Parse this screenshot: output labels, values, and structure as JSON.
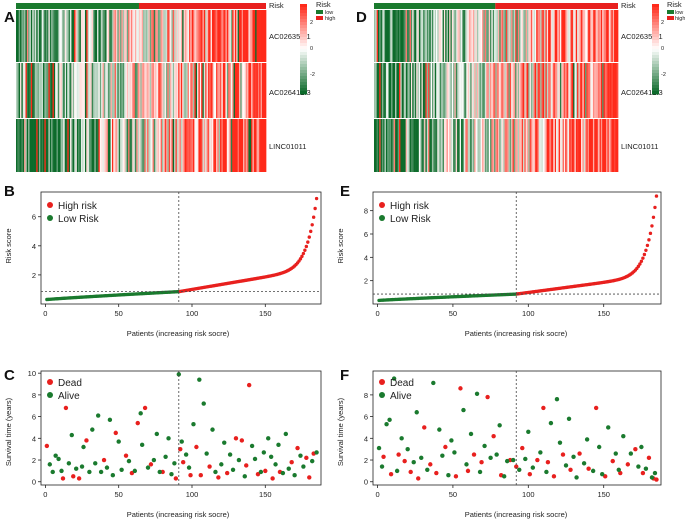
{
  "panels": {
    "A": "A",
    "B": "B",
    "C": "C",
    "D": "D",
    "E": "E",
    "F": "F"
  },
  "legend": {
    "risk_title": "Risk",
    "risk_low": "low",
    "risk_high": "high",
    "scale_ticks": [
      "2",
      "0",
      "-2"
    ],
    "high_risk": "High risk",
    "low_risk_B": "Low Risk",
    "high_risk_E": "High risk",
    "low_risk_E": "Low Risk",
    "dead": "Dead",
    "alive": "Alive"
  },
  "colors": {
    "high": "#e8201e",
    "low": "#1a7a2e",
    "hm_high": "#ff2a1a",
    "hm_low": "#0d6b2b",
    "hm_mid": "#ffffff"
  },
  "chart_data": [
    {
      "panel": "A",
      "type": "heatmap",
      "title": "Risk",
      "rows": [
        "AC026356.1",
        "AC026412.3",
        "LINC01011"
      ],
      "n_patients": 185,
      "low_count": 91,
      "color_range": [
        -2,
        2
      ]
    },
    {
      "panel": "B",
      "type": "scatter",
      "xlabel": "Patients (increasing risk socre)",
      "ylabel": "Risk score",
      "xlim": [
        -3,
        188
      ],
      "ylim": [
        0,
        7.7
      ],
      "xticks": [
        0,
        50,
        100,
        150
      ],
      "yticks": [
        2,
        4,
        6
      ],
      "n": 185,
      "cutoff_index": 91,
      "cutoff_score": 0.85,
      "series": [
        {
          "name": "Low Risk",
          "range": [
            0,
            0.85
          ]
        },
        {
          "name": "High risk",
          "range": [
            0.85,
            7.3
          ]
        }
      ]
    },
    {
      "panel": "C",
      "type": "scatter",
      "xlabel": "Patients (increasing risk socre)",
      "ylabel": "Survival time (years)",
      "xlim": [
        -3,
        188
      ],
      "ylim": [
        -0.3,
        10.2
      ],
      "xticks": [
        0,
        50,
        100,
        150
      ],
      "yticks": [
        0,
        2,
        4,
        6,
        8,
        10
      ],
      "cutoff_index": 91,
      "series": [
        {
          "name": "Dead",
          "points": [
            [
              1,
              3.3
            ],
            [
              12,
              0.3
            ],
            [
              14,
              6.8
            ],
            [
              19,
              0.5
            ],
            [
              23,
              0.3
            ],
            [
              28,
              3.8
            ],
            [
              40,
              2.0
            ],
            [
              48,
              4.5
            ],
            [
              55,
              2.4
            ],
            [
              59,
              0.8
            ],
            [
              63,
              5.4
            ],
            [
              68,
              6.8
            ],
            [
              72,
              1.6
            ],
            [
              80,
              0.9
            ],
            [
              89,
              0.3
            ],
            [
              92,
              3.0
            ],
            [
              94,
              1.8
            ],
            [
              99,
              0.6
            ],
            [
              103,
              3.2
            ],
            [
              106,
              0.6
            ],
            [
              112,
              1.4
            ],
            [
              118,
              0.4
            ],
            [
              124,
              0.8
            ],
            [
              130,
              4.0
            ],
            [
              134,
              3.8
            ],
            [
              137,
              1.5
            ],
            [
              139,
              8.9
            ],
            [
              145,
              0.7
            ],
            [
              150,
              1.0
            ],
            [
              155,
              0.3
            ],
            [
              160,
              0.9
            ],
            [
              168,
              1.8
            ],
            [
              172,
              3.1
            ],
            [
              178,
              2.2
            ],
            [
              180,
              0.4
            ],
            [
              183,
              2.6
            ]
          ]
        },
        {
          "name": "Alive",
          "points": [
            [
              3,
              1.6
            ],
            [
              5,
              0.9
            ],
            [
              7,
              2.4
            ],
            [
              9,
              2.1
            ],
            [
              11,
              1.0
            ],
            [
              16,
              1.7
            ],
            [
              18,
              4.3
            ],
            [
              21,
              1.2
            ],
            [
              25,
              1.4
            ],
            [
              26,
              3.2
            ],
            [
              30,
              0.9
            ],
            [
              32,
              4.8
            ],
            [
              34,
              1.7
            ],
            [
              36,
              6.1
            ],
            [
              38,
              0.9
            ],
            [
              42,
              1.3
            ],
            [
              44,
              5.7
            ],
            [
              46,
              0.6
            ],
            [
              50,
              3.7
            ],
            [
              52,
              1.1
            ],
            [
              57,
              1.9
            ],
            [
              61,
              1.0
            ],
            [
              65,
              6.3
            ],
            [
              66,
              3.4
            ],
            [
              70,
              1.3
            ],
            [
              74,
              2.0
            ],
            [
              76,
              4.4
            ],
            [
              78,
              0.9
            ],
            [
              82,
              2.3
            ],
            [
              84,
              4.0
            ],
            [
              86,
              0.7
            ],
            [
              88,
              1.7
            ],
            [
              91,
              9.9
            ],
            [
              93,
              3.7
            ],
            [
              96,
              2.5
            ],
            [
              98,
              1.3
            ],
            [
              101,
              5.3
            ],
            [
              105,
              9.4
            ],
            [
              108,
              7.2
            ],
            [
              110,
              2.6
            ],
            [
              114,
              4.8
            ],
            [
              116,
              0.9
            ],
            [
              120,
              1.6
            ],
            [
              122,
              3.6
            ],
            [
              126,
              2.5
            ],
            [
              128,
              1.1
            ],
            [
              132,
              2.0
            ],
            [
              136,
              0.5
            ],
            [
              141,
              3.3
            ],
            [
              143,
              2.1
            ],
            [
              147,
              0.9
            ],
            [
              149,
              2.7
            ],
            [
              152,
              4.0
            ],
            [
              154,
              2.3
            ],
            [
              157,
              1.6
            ],
            [
              159,
              3.4
            ],
            [
              162,
              0.8
            ],
            [
              164,
              4.4
            ],
            [
              166,
              1.2
            ],
            [
              170,
              0.6
            ],
            [
              174,
              2.4
            ],
            [
              176,
              1.4
            ],
            [
              182,
              1.9
            ],
            [
              185,
              2.7
            ]
          ]
        }
      ]
    },
    {
      "panel": "D",
      "type": "heatmap",
      "title": "Risk",
      "rows": [
        "AC026356.1",
        "AC026412.3",
        "LINC01011"
      ],
      "n_patients": 185,
      "low_count": 92,
      "color_range": [
        -2,
        2
      ]
    },
    {
      "panel": "E",
      "type": "scatter",
      "xlabel": "Patients (increasing risk socre)",
      "ylabel": "Risk score",
      "xlim": [
        -3,
        188
      ],
      "ylim": [
        0,
        9.6
      ],
      "xticks": [
        0,
        50,
        100,
        150
      ],
      "yticks": [
        2,
        4,
        6,
        8
      ],
      "n": 185,
      "cutoff_index": 92,
      "cutoff_score": 0.85,
      "series": [
        {
          "name": "Low Risk",
          "range": [
            0,
            0.85
          ]
        },
        {
          "name": "High risk",
          "range": [
            0.85,
            9.3
          ]
        }
      ]
    },
    {
      "panel": "F",
      "type": "scatter",
      "xlabel": "Patients (increasing risk socre)",
      "ylabel": "Survival time (years)",
      "xlim": [
        -3,
        188
      ],
      "ylim": [
        -0.3,
        10.2
      ],
      "xticks": [
        0,
        50,
        100,
        150
      ],
      "yticks": [
        0,
        2,
        4,
        6,
        8
      ],
      "cutoff_index": 92,
      "series": [
        {
          "name": "Dead",
          "points": [
            [
              4,
              2.3
            ],
            [
              9,
              0.7
            ],
            [
              14,
              2.5
            ],
            [
              18,
              1.9
            ],
            [
              22,
              0.9
            ],
            [
              27,
              0.3
            ],
            [
              31,
              5.0
            ],
            [
              35,
              1.6
            ],
            [
              39,
              0.8
            ],
            [
              45,
              3.2
            ],
            [
              52,
              0.5
            ],
            [
              55,
              8.6
            ],
            [
              60,
              1.0
            ],
            [
              64,
              2.5
            ],
            [
              69,
              1.8
            ],
            [
              73,
              7.8
            ],
            [
              77,
              4.2
            ],
            [
              82,
              0.6
            ],
            [
              88,
              2.0
            ],
            [
              92,
              1.4
            ],
            [
              96,
              3.1
            ],
            [
              101,
              0.7
            ],
            [
              106,
              2.0
            ],
            [
              110,
              6.8
            ],
            [
              113,
              1.8
            ],
            [
              117,
              0.5
            ],
            [
              123,
              2.5
            ],
            [
              128,
              1.1
            ],
            [
              134,
              2.6
            ],
            [
              140,
              1.2
            ],
            [
              145,
              6.8
            ],
            [
              151,
              0.5
            ],
            [
              156,
              1.9
            ],
            [
              161,
              0.8
            ],
            [
              166,
              1.6
            ],
            [
              171,
              3.0
            ],
            [
              176,
              0.8
            ],
            [
              180,
              2.2
            ],
            [
              183,
              0.3
            ],
            [
              185,
              0.2
            ]
          ]
        },
        {
          "name": "Alive",
          "points": [
            [
              1,
              3.1
            ],
            [
              3,
              1.4
            ],
            [
              6,
              5.3
            ],
            [
              8,
              5.7
            ],
            [
              11,
              9.5
            ],
            [
              13,
              1.0
            ],
            [
              16,
              4.0
            ],
            [
              20,
              3.0
            ],
            [
              24,
              1.8
            ],
            [
              26,
              6.4
            ],
            [
              29,
              2.2
            ],
            [
              33,
              1.1
            ],
            [
              37,
              9.1
            ],
            [
              41,
              4.8
            ],
            [
              43,
              2.4
            ],
            [
              47,
              0.6
            ],
            [
              49,
              3.8
            ],
            [
              51,
              2.7
            ],
            [
              57,
              6.6
            ],
            [
              59,
              1.6
            ],
            [
              62,
              4.4
            ],
            [
              66,
              8.1
            ],
            [
              68,
              0.9
            ],
            [
              71,
              3.3
            ],
            [
              75,
              2.2
            ],
            [
              79,
              2.5
            ],
            [
              81,
              5.2
            ],
            [
              84,
              0.5
            ],
            [
              86,
              1.9
            ],
            [
              90,
              2.0
            ],
            [
              94,
              1.1
            ],
            [
              98,
              2.1
            ],
            [
              100,
              4.6
            ],
            [
              103,
              1.3
            ],
            [
              108,
              2.7
            ],
            [
              112,
              0.9
            ],
            [
              115,
              5.4
            ],
            [
              119,
              7.6
            ],
            [
              121,
              3.6
            ],
            [
              125,
              1.5
            ],
            [
              127,
              5.8
            ],
            [
              130,
              2.3
            ],
            [
              132,
              0.4
            ],
            [
              137,
              1.7
            ],
            [
              139,
              3.9
            ],
            [
              143,
              1.0
            ],
            [
              147,
              3.2
            ],
            [
              149,
              0.7
            ],
            [
              153,
              5.0
            ],
            [
              158,
              2.6
            ],
            [
              160,
              1.1
            ],
            [
              163,
              4.2
            ],
            [
              168,
              2.6
            ],
            [
              173,
              1.4
            ],
            [
              175,
              3.2
            ],
            [
              178,
              1.2
            ],
            [
              182,
              0.4
            ],
            [
              184,
              0.8
            ]
          ]
        }
      ]
    }
  ]
}
